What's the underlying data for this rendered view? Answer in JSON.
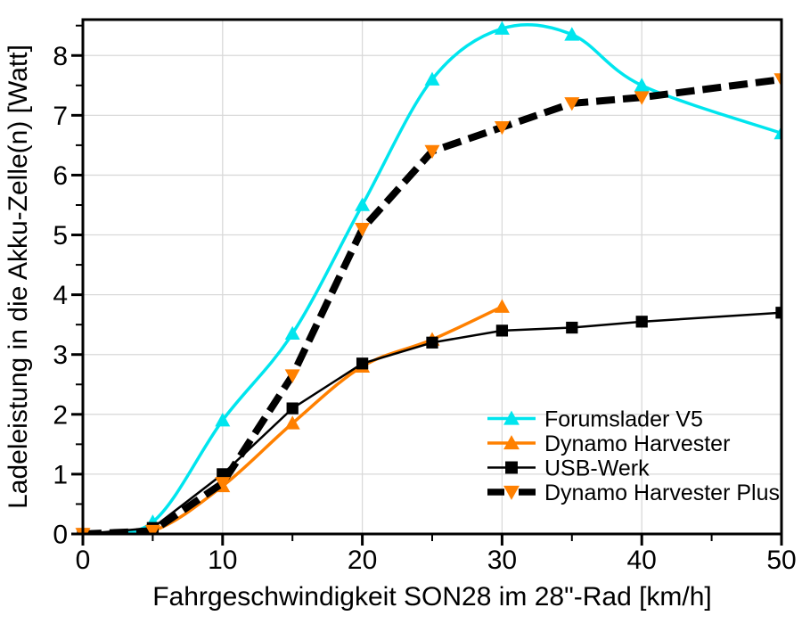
{
  "figure": {
    "background": "#FFFFFF",
    "frame_color": "#000000",
    "grid_color": "#D9D9D9"
  },
  "chart_data": {
    "type": "line",
    "title": "",
    "xlabel": "Fahrgeschwindigkeit SON28 im 28\"-Rad [km/h]",
    "ylabel": "Ladeleistung in die Akku-Zelle(n) [Watt]",
    "xlim": [
      0,
      50
    ],
    "ylim": [
      0,
      8.6
    ],
    "x_major_ticks": [
      0,
      10,
      20,
      30,
      40,
      50
    ],
    "x_minor_ticks": [
      5,
      15,
      25,
      35,
      45
    ],
    "y_major_ticks": [
      0,
      1,
      2,
      3,
      4,
      5,
      6,
      7,
      8
    ],
    "y_minor_ticks": [
      0.5,
      1.5,
      2.5,
      3.5,
      4.5,
      5.5,
      6.5,
      7.5,
      8.5
    ],
    "x_grid_at": [
      10,
      20,
      30,
      40
    ],
    "y_grid_at": [
      1,
      2,
      3,
      4,
      5,
      6,
      7,
      8
    ],
    "grid": "major",
    "legend_position": "inside-bottom-right",
    "series": [
      {
        "name": "Forumslader V5",
        "line_color": "#00E5EE",
        "marker": "triangle-up",
        "marker_color": "#00E5EE",
        "line_width": 3.5,
        "smooth": true,
        "dash": null,
        "x": [
          0,
          5,
          10,
          15,
          20,
          25,
          30,
          35,
          40,
          50
        ],
        "y": [
          0,
          0.2,
          1.9,
          3.35,
          5.5,
          7.6,
          8.45,
          8.35,
          7.5,
          6.7
        ]
      },
      {
        "name": "Dynamo Harvester",
        "line_color": "#FF8000",
        "marker": "triangle-up",
        "marker_color": "#FF8000",
        "line_width": 3.5,
        "smooth": true,
        "dash": null,
        "x": [
          0,
          5,
          10,
          15,
          20,
          25,
          30
        ],
        "y": [
          0,
          0.05,
          0.8,
          1.85,
          2.8,
          3.25,
          3.8
        ]
      },
      {
        "name": "USB-Werk",
        "line_color": "#000000",
        "marker": "square",
        "marker_color": "#000000",
        "line_width": 2.5,
        "smooth": false,
        "dash": null,
        "x": [
          0,
          5,
          10,
          15,
          20,
          25,
          30,
          35,
          40,
          50
        ],
        "y": [
          0,
          0.1,
          1.0,
          2.1,
          2.85,
          3.2,
          3.4,
          3.45,
          3.55,
          3.7
        ]
      },
      {
        "name": "Dynamo Harvester Plus",
        "line_color": "#000000",
        "marker": "triangle-down",
        "marker_color": "#FF8000",
        "line_width": 8,
        "smooth": false,
        "dash": "21 9",
        "x": [
          0,
          5,
          10,
          15,
          20,
          25,
          30,
          35,
          40,
          50
        ],
        "y": [
          0,
          0.05,
          0.85,
          2.65,
          5.1,
          6.4,
          6.8,
          7.2,
          7.3,
          7.6
        ]
      }
    ]
  }
}
